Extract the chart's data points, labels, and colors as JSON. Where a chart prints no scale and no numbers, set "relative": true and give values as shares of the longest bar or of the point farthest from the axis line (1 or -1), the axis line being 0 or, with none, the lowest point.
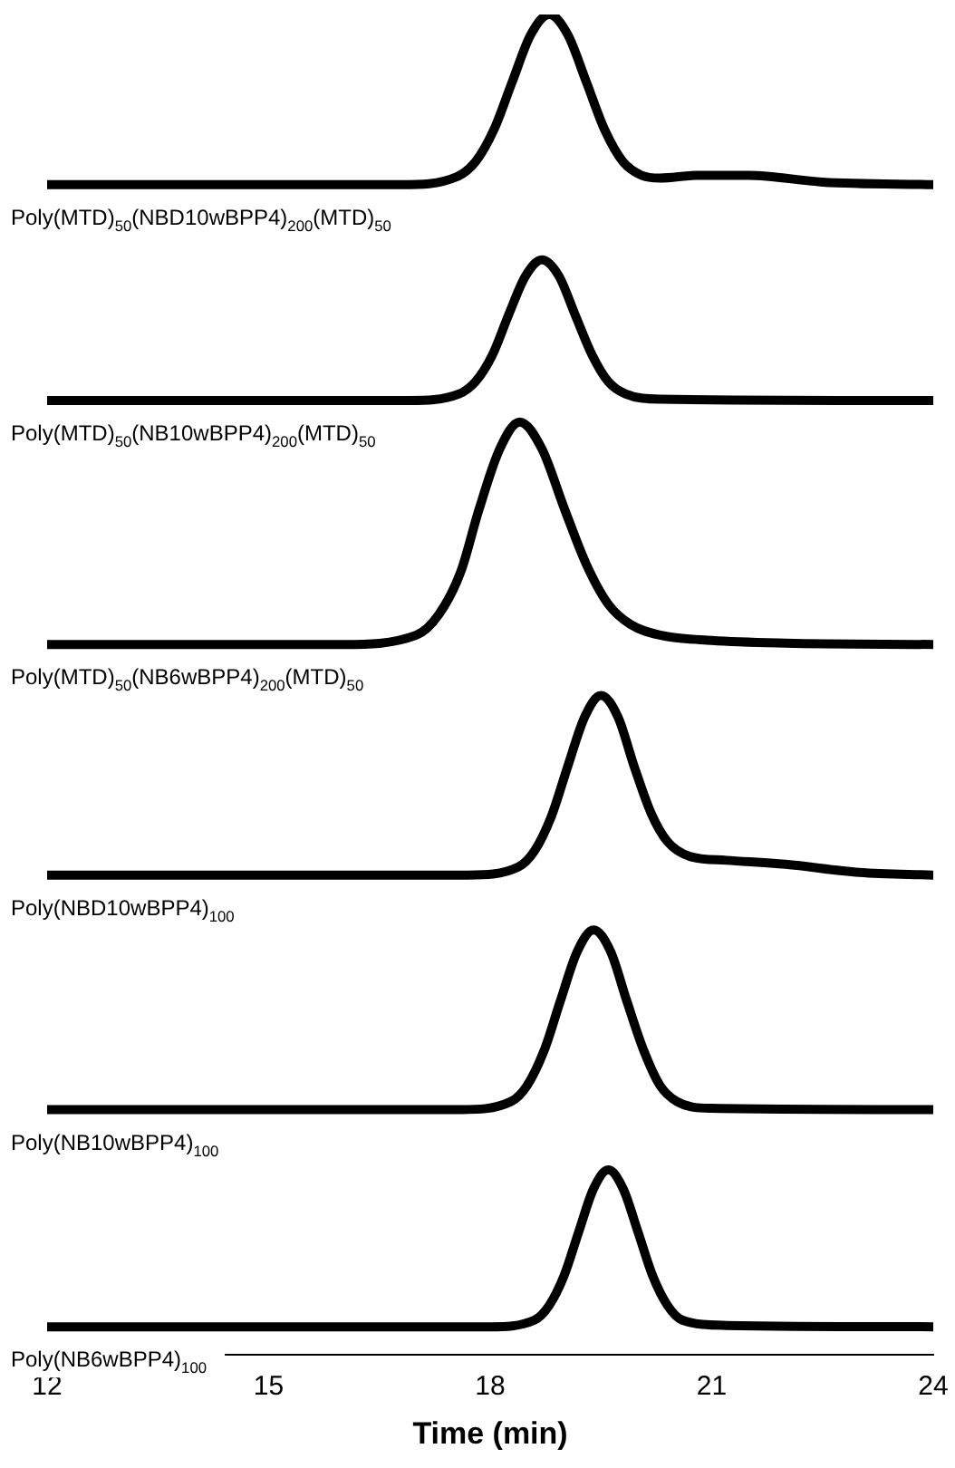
{
  "chart_data": {
    "type": "line",
    "relative": true,
    "xlabel": "Time (min)",
    "xlim": [
      12,
      24
    ],
    "xticks": [
      12,
      15,
      18,
      21,
      24
    ],
    "tick_labels": "x",
    "grid": false,
    "legend": false,
    "marker": "none",
    "line_style": "solid",
    "series": [
      {
        "name": "Poly(MTD)$_{50}$(NBD10wBPP4)$_{200}$(MTD)$_{50}$",
        "color": "#000000",
        "x": [
          12,
          16.8,
          17.55,
          17.8,
          18.05,
          18.3,
          18.55,
          18.8,
          19.05,
          19.3,
          19.55,
          19.8,
          20.05,
          20.3,
          20.8,
          21.5,
          22.5,
          24
        ],
        "values": [
          0.873,
          0.873,
          0.879,
          0.89,
          0.914,
          0.95,
          0.985,
          1.0,
          0.985,
          0.95,
          0.914,
          0.89,
          0.88,
          0.878,
          0.88,
          0.88,
          0.875,
          0.873
        ]
      },
      {
        "name": "Poly(MTD)$_{50}$(NB10wBPP4)$_{200}$(MTD)$_{50}$",
        "color": "#000000",
        "x": [
          12,
          16.9,
          17.58,
          17.8,
          18.03,
          18.25,
          18.48,
          18.7,
          18.93,
          19.15,
          19.38,
          19.6,
          19.83,
          20.3,
          24
        ],
        "values": [
          0.712,
          0.712,
          0.717,
          0.726,
          0.746,
          0.776,
          0.805,
          0.817,
          0.805,
          0.776,
          0.746,
          0.726,
          0.717,
          0.713,
          0.712
        ]
      },
      {
        "name": "Poly(MTD)$_{50}$(NB6wBPP4)$_{200}$(MTD)$_{50}$",
        "color": "#000000",
        "x": [
          12,
          16.0,
          17.0,
          17.3,
          17.6,
          17.85,
          18.13,
          18.4,
          18.7,
          19.0,
          19.3,
          19.6,
          19.9,
          20.3,
          21,
          22,
          24
        ],
        "values": [
          0.53,
          0.53,
          0.537,
          0.552,
          0.584,
          0.631,
          0.676,
          0.696,
          0.676,
          0.632,
          0.59,
          0.56,
          0.545,
          0.537,
          0.533,
          0.531,
          0.53
        ]
      },
      {
        "name": "Poly(NBD10wBPP4)$_{100}$",
        "color": "#000000",
        "x": [
          12,
          17.7,
          18.38,
          18.6,
          18.83,
          19.05,
          19.28,
          19.5,
          19.73,
          19.95,
          20.18,
          20.4,
          20.7,
          21.2,
          22,
          23,
          24
        ],
        "values": [
          0.358,
          0.358,
          0.364,
          0.376,
          0.402,
          0.439,
          0.476,
          0.492,
          0.476,
          0.439,
          0.404,
          0.383,
          0.372,
          0.369,
          0.366,
          0.36,
          0.358
        ]
      },
      {
        "name": "Poly(NB10wBPP4)$_{100}$",
        "color": "#000000",
        "x": [
          12,
          17.6,
          18.28,
          18.5,
          18.73,
          18.95,
          19.18,
          19.4,
          19.63,
          19.85,
          20.08,
          20.3,
          20.53,
          21,
          24
        ],
        "values": [
          0.183,
          0.183,
          0.189,
          0.201,
          0.227,
          0.264,
          0.301,
          0.317,
          0.301,
          0.264,
          0.227,
          0.201,
          0.189,
          0.184,
          0.183
        ]
      },
      {
        "name": "Poly(NB6wBPP4)$_{100}$",
        "color": "#000000",
        "x": [
          12,
          18.0,
          18.6,
          18.8,
          19.0,
          19.2,
          19.4,
          19.6,
          19.8,
          20.0,
          20.2,
          20.4,
          20.6,
          21.2,
          24
        ],
        "values": [
          0.021,
          0.021,
          0.026,
          0.037,
          0.059,
          0.092,
          0.124,
          0.138,
          0.124,
          0.092,
          0.059,
          0.037,
          0.026,
          0.022,
          0.021
        ]
      }
    ]
  }
}
